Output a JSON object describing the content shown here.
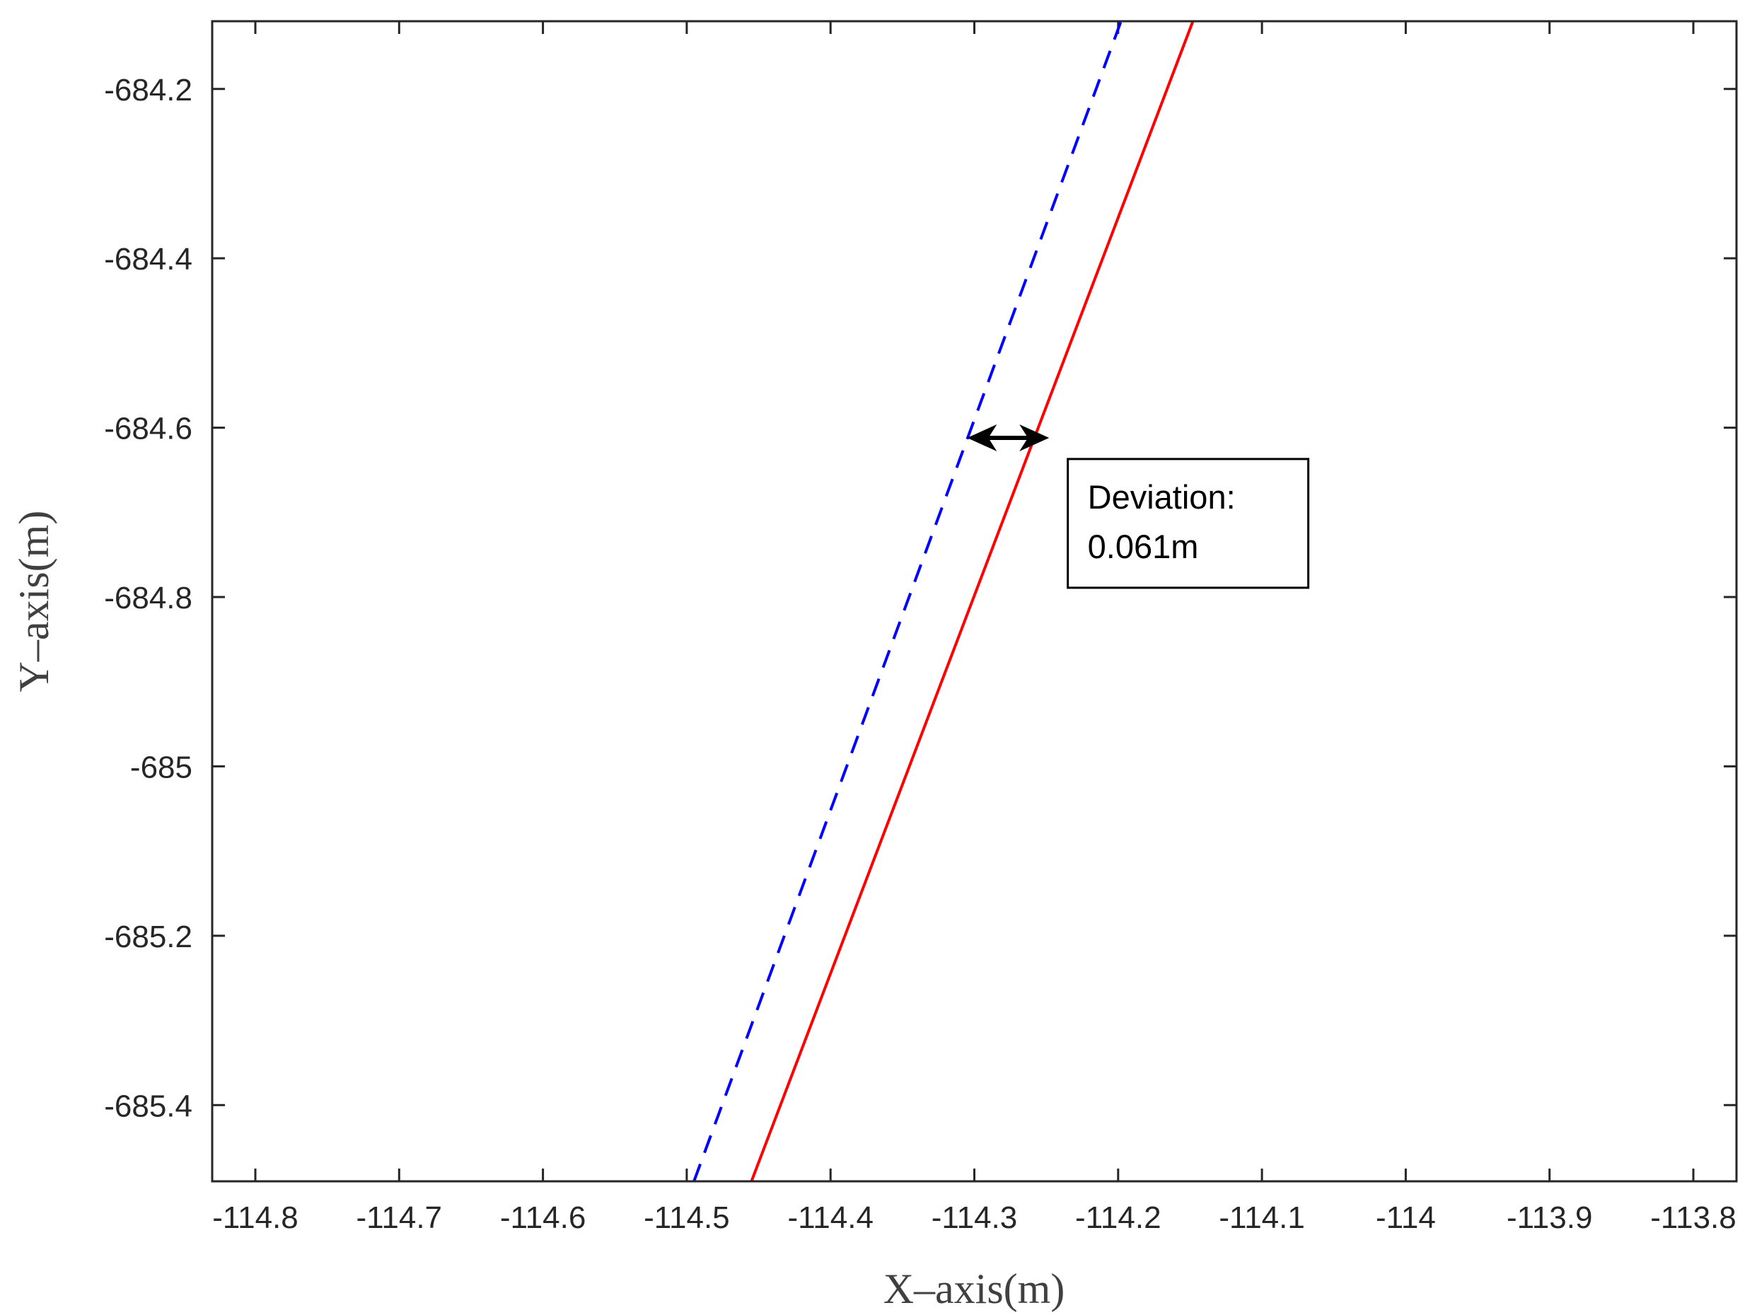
{
  "chart_data": {
    "type": "line",
    "title": "",
    "xlabel": "X–axis(m)",
    "ylabel": "Y–axis(m)",
    "xlim": [
      -114.83,
      -113.77
    ],
    "ylim": [
      -685.49,
      -684.12
    ],
    "xticks": [
      -114.8,
      -114.7,
      -114.6,
      -114.5,
      -114.4,
      -114.3,
      -114.2,
      -114.1,
      -114,
      -113.9,
      -113.8
    ],
    "xtick_labels": [
      "-114.8",
      "-114.7",
      "-114.6",
      "-114.5",
      "-114.4",
      "-114.3",
      "-114.2",
      "-114.1",
      "-114",
      "-113.9",
      "-113.8"
    ],
    "yticks": [
      -684.2,
      -684.4,
      -684.6,
      -684.8,
      -685,
      -685.2,
      -685.4
    ],
    "ytick_labels": [
      "-684.2",
      "-684.4",
      "-684.6",
      "-684.8",
      "-685",
      "-685.2",
      "-685.4"
    ],
    "grid": false,
    "series": [
      {
        "style": "dashed",
        "color": "#0000ff",
        "x": [
          -114.495,
          -114.198
        ],
        "y": [
          -685.49,
          -684.12
        ]
      },
      {
        "style": "solid",
        "color": "#ff0000",
        "x": [
          -114.455,
          -114.148
        ],
        "y": [
          -685.49,
          -684.12
        ]
      }
    ],
    "annotations": [
      {
        "type": "double-arrow",
        "x": [
          -114.305,
          -114.248
        ],
        "y": -684.612,
        "color": "#000000",
        "text_lines": [
          "Deviation:",
          "0.061m"
        ],
        "text_anchor": {
          "x": -114.235,
          "y": -684.637
        }
      }
    ]
  }
}
